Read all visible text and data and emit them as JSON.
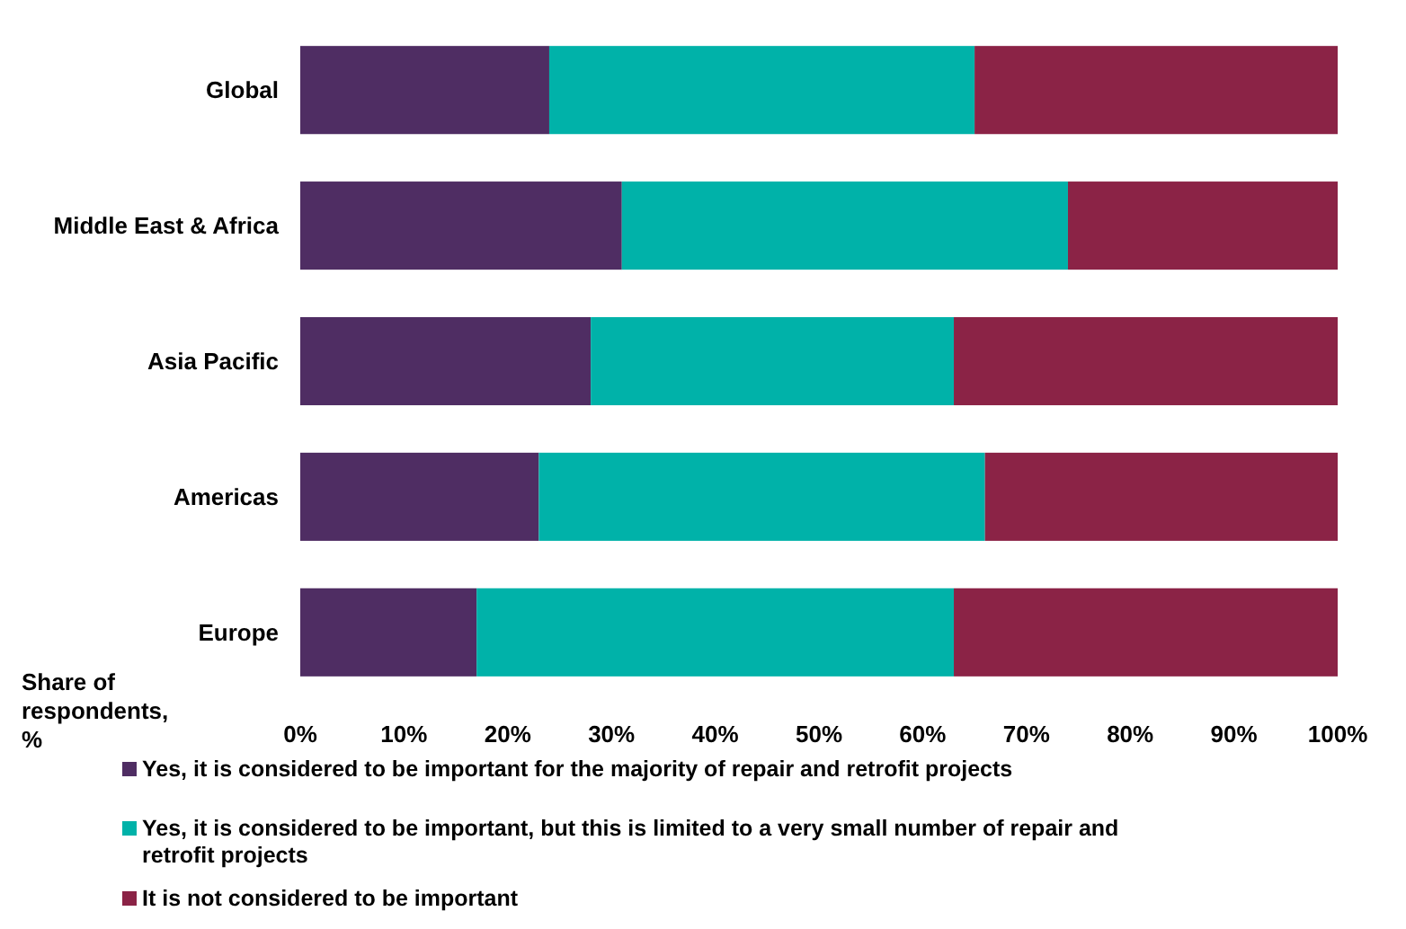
{
  "chart_data": {
    "type": "bar",
    "orientation": "horizontal",
    "stacked": true,
    "xlabel": "Share of respondents, %",
    "categories": [
      "Global",
      "Middle East & Africa",
      "Asia Pacific",
      "Americas",
      "Europe"
    ],
    "series": [
      {
        "name": "Yes, it is considered to be important for the majority of repair and retrofit projects",
        "color": "#4f2d63",
        "values": [
          24,
          31,
          28,
          23,
          17
        ]
      },
      {
        "name": "Yes, it is considered to be important, but this is limited to a very small number of repair and retrofit projects",
        "color": "#00b2a9",
        "values": [
          41,
          43,
          35,
          43,
          46
        ]
      },
      {
        "name": "It is not considered to be important",
        "color": "#8b2346",
        "values": [
          35,
          26,
          37,
          34,
          37
        ]
      }
    ],
    "xlim": [
      0,
      100
    ],
    "xticks": [
      {
        "value": 0,
        "label": "0%"
      },
      {
        "value": 10,
        "label": "10%"
      },
      {
        "value": 20,
        "label": "20%"
      },
      {
        "value": 30,
        "label": "30%"
      },
      {
        "value": 40,
        "label": "40%"
      },
      {
        "value": 50,
        "label": "50%"
      },
      {
        "value": 60,
        "label": "60%"
      },
      {
        "value": 70,
        "label": "70%"
      },
      {
        "value": 80,
        "label": "80%"
      },
      {
        "value": 90,
        "label": "90%"
      },
      {
        "value": 100,
        "label": "100%"
      }
    ],
    "grid": false,
    "legend": "bottom"
  }
}
